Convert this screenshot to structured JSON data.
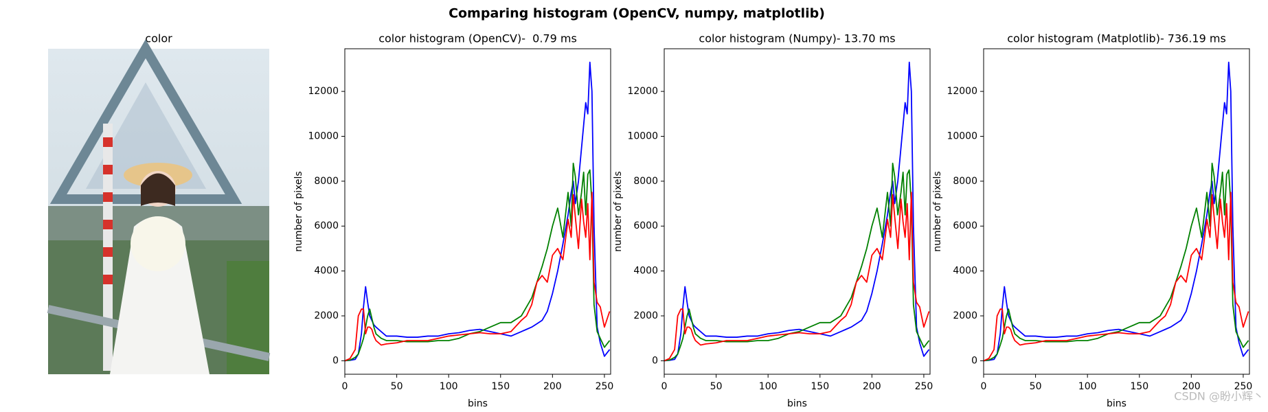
{
  "title": "Comparing histogram (OpenCV, numpy, matplotlib)",
  "image": {
    "title": "color"
  },
  "watermark": "CSDN @盼小辉丶",
  "chart_data": [
    {
      "type": "line",
      "title": "color histogram (OpenCV)-  0.79 ms",
      "xlabel": "bins",
      "ylabel": "number of pixels",
      "xlim": [
        0,
        256
      ],
      "ylim": [
        -600,
        13900
      ],
      "xticks": [
        0,
        50,
        100,
        150,
        200,
        250
      ],
      "yticks": [
        0,
        2000,
        4000,
        6000,
        8000,
        10000,
        12000
      ],
      "x": [
        0,
        5,
        10,
        13,
        16,
        18,
        20,
        22,
        24,
        26,
        28,
        30,
        35,
        40,
        50,
        60,
        70,
        80,
        90,
        100,
        110,
        120,
        130,
        140,
        150,
        160,
        170,
        175,
        180,
        185,
        190,
        195,
        200,
        205,
        210,
        215,
        218,
        220,
        222,
        225,
        228,
        230,
        232,
        234,
        236,
        238,
        240,
        243,
        246,
        250,
        255
      ],
      "series": [
        {
          "color": "#0000ff",
          "values": [
            0,
            20,
            60,
            300,
            1200,
            2400,
            3300,
            2600,
            2000,
            1800,
            1600,
            1500,
            1300,
            1100,
            1100,
            1050,
            1050,
            1100,
            1100,
            1200,
            1250,
            1350,
            1400,
            1300,
            1200,
            1100,
            1300,
            1400,
            1500,
            1650,
            1800,
            2200,
            3000,
            4000,
            5200,
            6500,
            7500,
            8000,
            7000,
            8000,
            9500,
            10500,
            11500,
            11000,
            13300,
            12000,
            6000,
            1500,
            800,
            200,
            500
          ]
        },
        {
          "color": "#008000",
          "values": [
            0,
            30,
            150,
            300,
            700,
            1000,
            1500,
            2000,
            2300,
            1900,
            1500,
            1200,
            1000,
            900,
            900,
            850,
            850,
            850,
            900,
            900,
            1000,
            1200,
            1300,
            1500,
            1700,
            1700,
            2000,
            2400,
            2800,
            3500,
            4200,
            5000,
            6000,
            6800,
            5500,
            7500,
            6000,
            8800,
            8200,
            6500,
            7500,
            8400,
            6500,
            8300,
            8500,
            7000,
            2500,
            1300,
            1000,
            600,
            900
          ]
        },
        {
          "color": "#ff0000",
          "values": [
            0,
            100,
            500,
            2000,
            2300,
            2300,
            1200,
            1500,
            1500,
            1400,
            1100,
            900,
            700,
            750,
            800,
            900,
            900,
            900,
            1000,
            1100,
            1150,
            1200,
            1250,
            1200,
            1200,
            1300,
            1800,
            2000,
            2500,
            3500,
            3800,
            3500,
            4700,
            5000,
            4500,
            6300,
            5500,
            7400,
            6400,
            5000,
            7200,
            6200,
            5500,
            7000,
            4500,
            7500,
            3500,
            2600,
            2400,
            1500,
            2200
          ]
        }
      ]
    },
    {
      "type": "line",
      "title": "color histogram (Numpy)- 13.70 ms",
      "xlabel": "bins",
      "ylabel": "number of pixels",
      "xlim": [
        0,
        256
      ],
      "ylim": [
        -600,
        13900
      ],
      "xticks": [
        0,
        50,
        100,
        150,
        200,
        250
      ],
      "yticks": [
        0,
        2000,
        4000,
        6000,
        8000,
        10000,
        12000
      ],
      "x": [
        0,
        5,
        10,
        13,
        16,
        18,
        20,
        22,
        24,
        26,
        28,
        30,
        35,
        40,
        50,
        60,
        70,
        80,
        90,
        100,
        110,
        120,
        130,
        140,
        150,
        160,
        170,
        175,
        180,
        185,
        190,
        195,
        200,
        205,
        210,
        215,
        218,
        220,
        222,
        225,
        228,
        230,
        232,
        234,
        236,
        238,
        240,
        243,
        246,
        250,
        255
      ],
      "series": [
        {
          "color": "#0000ff",
          "values": [
            0,
            20,
            60,
            300,
            1200,
            2400,
            3300,
            2600,
            2000,
            1800,
            1600,
            1500,
            1300,
            1100,
            1100,
            1050,
            1050,
            1100,
            1100,
            1200,
            1250,
            1350,
            1400,
            1300,
            1200,
            1100,
            1300,
            1400,
            1500,
            1650,
            1800,
            2200,
            3000,
            4000,
            5200,
            6500,
            7500,
            8000,
            7000,
            8000,
            9500,
            10500,
            11500,
            11000,
            13300,
            12000,
            6000,
            1500,
            800,
            200,
            500
          ]
        },
        {
          "color": "#008000",
          "values": [
            0,
            30,
            150,
            300,
            700,
            1000,
            1500,
            2000,
            2300,
            1900,
            1500,
            1200,
            1000,
            900,
            900,
            850,
            850,
            850,
            900,
            900,
            1000,
            1200,
            1300,
            1500,
            1700,
            1700,
            2000,
            2400,
            2800,
            3500,
            4200,
            5000,
            6000,
            6800,
            5500,
            7500,
            6000,
            8800,
            8200,
            6500,
            7500,
            8400,
            6500,
            8300,
            8500,
            7000,
            2500,
            1300,
            1000,
            600,
            900
          ]
        },
        {
          "color": "#ff0000",
          "values": [
            0,
            100,
            500,
            2000,
            2300,
            2300,
            1200,
            1500,
            1500,
            1400,
            1100,
            900,
            700,
            750,
            800,
            900,
            900,
            900,
            1000,
            1100,
            1150,
            1200,
            1250,
            1200,
            1200,
            1300,
            1800,
            2000,
            2500,
            3500,
            3800,
            3500,
            4700,
            5000,
            4500,
            6300,
            5500,
            7400,
            6400,
            5000,
            7200,
            6200,
            5500,
            7000,
            4500,
            7500,
            3500,
            2600,
            2400,
            1500,
            2200
          ]
        }
      ]
    },
    {
      "type": "line",
      "title": "color histogram (Matplotlib)- 736.19 ms",
      "xlabel": "bins",
      "ylabel": "number of pixels",
      "xlim": [
        0,
        256
      ],
      "ylim": [
        -600,
        13900
      ],
      "xticks": [
        0,
        50,
        100,
        150,
        200,
        250
      ],
      "yticks": [
        0,
        2000,
        4000,
        6000,
        8000,
        10000,
        12000
      ],
      "x": [
        0,
        5,
        10,
        13,
        16,
        18,
        20,
        22,
        24,
        26,
        28,
        30,
        35,
        40,
        50,
        60,
        70,
        80,
        90,
        100,
        110,
        120,
        130,
        140,
        150,
        160,
        170,
        175,
        180,
        185,
        190,
        195,
        200,
        205,
        210,
        215,
        218,
        220,
        222,
        225,
        228,
        230,
        232,
        234,
        236,
        238,
        240,
        243,
        246,
        250,
        255
      ],
      "series": [
        {
          "color": "#0000ff",
          "values": [
            0,
            20,
            60,
            300,
            1200,
            2400,
            3300,
            2600,
            2000,
            1800,
            1600,
            1500,
            1300,
            1100,
            1100,
            1050,
            1050,
            1100,
            1100,
            1200,
            1250,
            1350,
            1400,
            1300,
            1200,
            1100,
            1300,
            1400,
            1500,
            1650,
            1800,
            2200,
            3000,
            4000,
            5200,
            6500,
            7500,
            8000,
            7000,
            8000,
            9500,
            10500,
            11500,
            11000,
            13300,
            12000,
            6000,
            1500,
            800,
            200,
            500
          ]
        },
        {
          "color": "#008000",
          "values": [
            0,
            30,
            150,
            300,
            700,
            1000,
            1500,
            2000,
            2300,
            1900,
            1500,
            1200,
            1000,
            900,
            900,
            850,
            850,
            850,
            900,
            900,
            1000,
            1200,
            1300,
            1500,
            1700,
            1700,
            2000,
            2400,
            2800,
            3500,
            4200,
            5000,
            6000,
            6800,
            5500,
            7500,
            6000,
            8800,
            8200,
            6500,
            7500,
            8400,
            6500,
            8300,
            8500,
            7000,
            2500,
            1300,
            1000,
            600,
            900
          ]
        },
        {
          "color": "#ff0000",
          "values": [
            0,
            100,
            500,
            2000,
            2300,
            2300,
            1200,
            1500,
            1500,
            1400,
            1100,
            900,
            700,
            750,
            800,
            900,
            900,
            900,
            1000,
            1100,
            1150,
            1200,
            1250,
            1200,
            1200,
            1300,
            1800,
            2000,
            2500,
            3500,
            3800,
            3500,
            4700,
            5000,
            4500,
            6300,
            5500,
            7400,
            6400,
            5000,
            7200,
            6200,
            5500,
            7000,
            4500,
            7500,
            3500,
            2600,
            2400,
            1500,
            2200
          ]
        }
      ]
    }
  ]
}
